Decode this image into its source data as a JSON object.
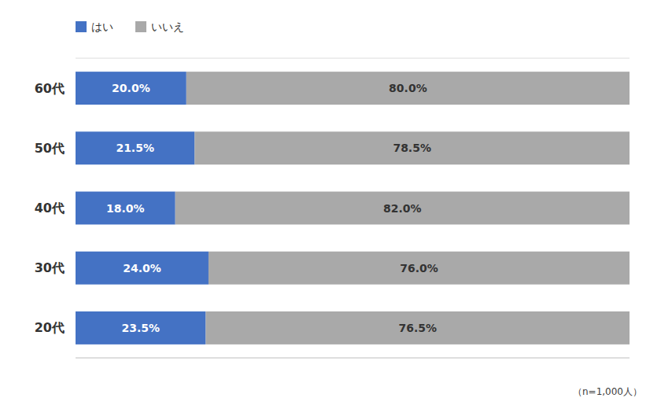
{
  "chart_data": {
    "type": "bar",
    "orientation": "horizontal",
    "stacked": true,
    "categories": [
      "20代",
      "30代",
      "40代",
      "50代",
      "60代"
    ],
    "series": [
      {
        "name": "はい",
        "color": "#4472C4",
        "values": [
          23.5,
          24.0,
          18.0,
          21.5,
          20.0
        ],
        "value_labels": [
          "23.5%",
          "24.0%",
          "18.0%",
          "21.5%",
          "20.0%"
        ]
      },
      {
        "name": "いいえ",
        "color": "#A9A9A9",
        "values": [
          76.5,
          76.0,
          82.0,
          78.5,
          80.0
        ],
        "value_labels": [
          "76.5%",
          "76.0%",
          "82.0%",
          "78.5%",
          "80.0%"
        ]
      }
    ],
    "xlim": [
      0,
      100
    ],
    "data_labels": true,
    "tick_labels": "y",
    "grid": false,
    "legend": "top-left",
    "annotations": [
      "（n=1,000人）"
    ]
  }
}
